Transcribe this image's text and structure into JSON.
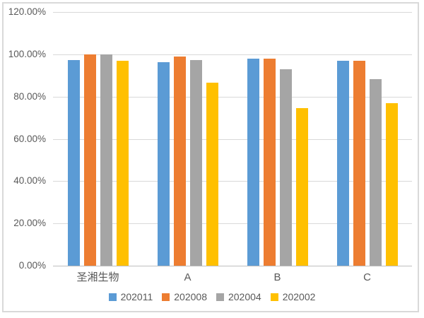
{
  "chart_data": {
    "type": "bar",
    "title": "",
    "xlabel": "",
    "ylabel": "",
    "ylim": [
      0,
      120
    ],
    "grid": true,
    "legend_position": "bottom-center",
    "yticks": [
      {
        "value": 0,
        "label": "0.00%"
      },
      {
        "value": 20,
        "label": "20.00%"
      },
      {
        "value": 40,
        "label": "40.00%"
      },
      {
        "value": 60,
        "label": "60.00%"
      },
      {
        "value": 80,
        "label": "80.00%"
      },
      {
        "value": 100,
        "label": "100.00%"
      },
      {
        "value": 120,
        "label": "120.00%"
      }
    ],
    "categories": [
      "圣湘生物",
      "A",
      "B",
      "C"
    ],
    "series": [
      {
        "name": "202011",
        "color": "#5B9BD5",
        "values": [
          97.3,
          96.3,
          97.8,
          96.9
        ]
      },
      {
        "name": "202008",
        "color": "#ED7D31",
        "values": [
          100.0,
          99.0,
          98.0,
          97.1
        ]
      },
      {
        "name": "202004",
        "color": "#A5A5A5",
        "values": [
          100.0,
          97.2,
          92.8,
          88.3
        ]
      },
      {
        "name": "202002",
        "color": "#FFC000",
        "values": [
          96.9,
          86.6,
          74.4,
          76.9
        ]
      }
    ],
    "colors": {
      "gridline": "#D9D9D9",
      "axis_line": "#BFBFBF",
      "tick_text": "#595959",
      "frame_border": "#D9D9D9",
      "background": "#FFFFFF"
    }
  }
}
